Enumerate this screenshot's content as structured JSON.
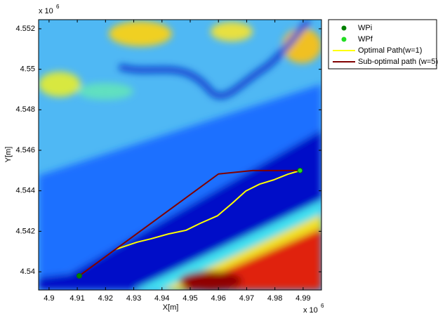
{
  "chart_data": {
    "type": "line",
    "x_label": "X[m]",
    "y_label": "Y[m]",
    "x_multiplier": {
      "base": "x 10",
      "exponent": "6"
    },
    "y_multiplier": {
      "base": "x 10",
      "exponent": "6"
    },
    "xlim": [
      4.8963,
      4.9965
    ],
    "ylim": [
      4.5391,
      4.55245
    ],
    "xticks": [
      4.9,
      4.91,
      4.92,
      4.93,
      4.94,
      4.95,
      4.96,
      4.97,
      4.98,
      4.99
    ],
    "yticks": [
      4.54,
      4.542,
      4.544,
      4.546,
      4.548,
      4.55,
      4.552
    ],
    "legend_position": "outside-right-top",
    "series": [
      {
        "name": "WPi",
        "color": "#008000",
        "style": "marker",
        "x": [
          4.9107
        ],
        "values": [
          4.5398
        ]
      },
      {
        "name": "WPf",
        "color": "#22dd22",
        "style": "marker",
        "x": [
          4.9889
        ],
        "values": [
          4.545
        ]
      },
      {
        "name": "Optimal Path(w=1)",
        "color": "#ffff00",
        "style": "line",
        "x": [
          4.9236,
          4.9311,
          4.9361,
          4.9423,
          4.9485,
          4.9535,
          4.9597,
          4.9647,
          4.9697,
          4.9746,
          4.9796,
          4.9846,
          4.9888
        ],
        "values": [
          4.54111,
          4.54146,
          4.54163,
          4.54187,
          4.54205,
          4.54239,
          4.54277,
          4.54336,
          4.54399,
          4.54433,
          4.54454,
          4.54482,
          4.54499
        ]
      },
      {
        "name": "Sub-optimal path (w=5)",
        "color": "#800000",
        "style": "line",
        "x": [
          4.9107,
          4.96,
          4.9721,
          4.9889
        ],
        "values": [
          4.5398,
          4.54483,
          4.545,
          4.545
        ]
      }
    ]
  }
}
